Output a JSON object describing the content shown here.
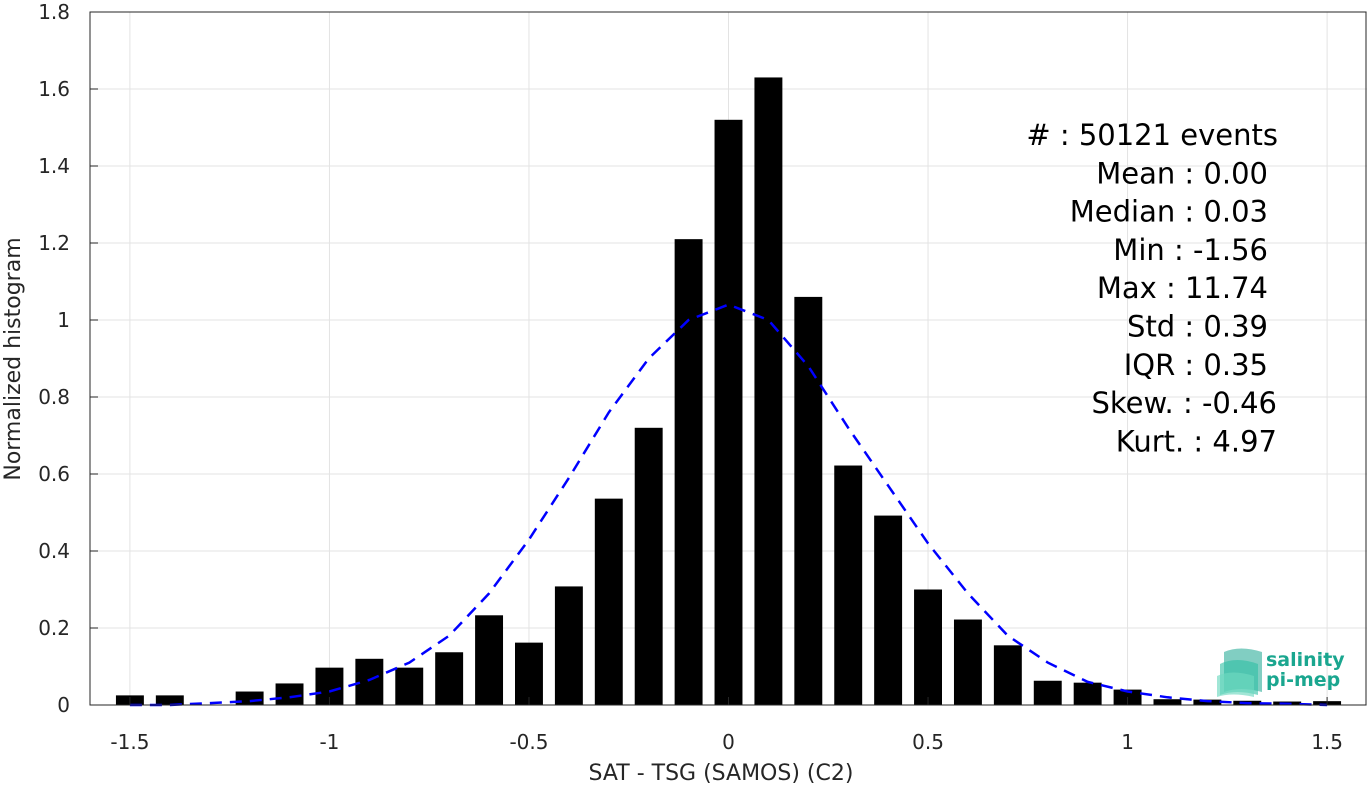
{
  "chart_data": {
    "type": "bar",
    "xlabel": "SAT - TSG (SAMOS) (C2)",
    "ylabel": "Normalized histogram",
    "xlim": [
      -1.6,
      1.6
    ],
    "ylim": [
      0,
      1.8
    ],
    "xticks": [
      "-1.5",
      "-1",
      "-0.5",
      "0",
      "0.5",
      "1",
      "1.5"
    ],
    "xtick_values": [
      -1.5,
      -1,
      -0.5,
      0,
      0.5,
      1,
      1.5
    ],
    "yticks": [
      "0",
      "0.2",
      "0.4",
      "0.6",
      "0.8",
      "1",
      "1.2",
      "1.4",
      "1.6",
      "1.8"
    ],
    "ytick_values": [
      0,
      0.2,
      0.4,
      0.6,
      0.8,
      1.0,
      1.2,
      1.4,
      1.6,
      1.8
    ],
    "grid": true,
    "bar_color": "#000000",
    "bars": {
      "x": [
        -1.5,
        -1.4,
        -1.2,
        -1.1,
        -1.0,
        -0.9,
        -0.8,
        -0.7,
        -0.6,
        -0.5,
        -0.4,
        -0.3,
        -0.2,
        -0.1,
        0.0,
        0.1,
        0.2,
        0.3,
        0.4,
        0.5,
        0.6,
        0.7,
        0.8,
        0.9,
        1.0,
        1.1,
        1.2,
        1.3,
        1.4,
        1.5
      ],
      "values": [
        0.025,
        0.025,
        0.035,
        0.056,
        0.097,
        0.12,
        0.097,
        0.137,
        0.233,
        0.162,
        0.308,
        0.536,
        0.72,
        1.21,
        1.52,
        1.63,
        1.06,
        0.622,
        0.492,
        0.3,
        0.222,
        0.155,
        0.063,
        0.058,
        0.04,
        0.015,
        0.014,
        0.011,
        0.009,
        0.01
      ]
    },
    "fit_line": {
      "style": "dashed",
      "color": "#0000ff",
      "x": [
        -1.5,
        -1.4,
        -1.3,
        -1.2,
        -1.1,
        -1.0,
        -0.9,
        -0.8,
        -0.7,
        -0.6,
        -0.5,
        -0.4,
        -0.3,
        -0.2,
        -0.1,
        0.0,
        0.1,
        0.2,
        0.3,
        0.4,
        0.5,
        0.6,
        0.7,
        0.8,
        0.9,
        1.0,
        1.1,
        1.2,
        1.3,
        1.4,
        1.5
      ],
      "y": [
        0.0,
        0.0,
        0.005,
        0.01,
        0.02,
        0.035,
        0.065,
        0.11,
        0.18,
        0.29,
        0.43,
        0.59,
        0.76,
        0.9,
        1.0,
        1.04,
        1.0,
        0.88,
        0.72,
        0.57,
        0.42,
        0.29,
        0.18,
        0.11,
        0.06,
        0.035,
        0.02,
        0.01,
        0.005,
        0.003,
        0.0
      ]
    },
    "stats_legend_placement": "top-right",
    "stats": [
      {
        "label": "#  ",
        "value": "50121 events"
      },
      {
        "label": "Mean",
        "value": "0.00"
      },
      {
        "label": "Median",
        "value": "0.03"
      },
      {
        "label": "Min",
        "value": "-1.56"
      },
      {
        "label": "Max",
        "value": "11.74"
      },
      {
        "label": "Std",
        "value": "0.39"
      },
      {
        "label": "IQR",
        "value": "0.35"
      },
      {
        "label": "Skew.",
        "value": "-0.46"
      },
      {
        "label": "Kurt.",
        "value": "4.97"
      }
    ]
  },
  "logo": {
    "line1": "salinity",
    "line2": "pi-mep",
    "color": "#1aa68f",
    "icon": "waves-logo-icon"
  }
}
